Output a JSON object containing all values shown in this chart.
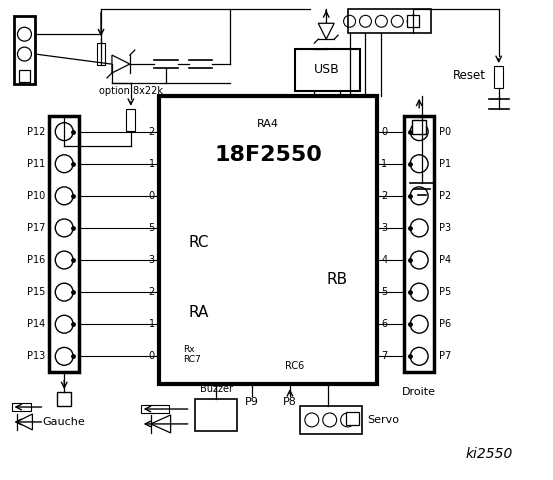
{
  "bg_color": "#ffffff",
  "line_color": "#000000",
  "chip_label": "18F2550",
  "chip_ra4": "RA4",
  "chip_rc": "RC",
  "chip_ra": "RA",
  "chip_rb": "RB",
  "chip_rc6": "RC6",
  "left_pins": [
    "P12",
    "P11",
    "P10",
    "P17",
    "P16",
    "P15",
    "P14",
    "P13"
  ],
  "left_rc_nums": [
    "2",
    "1",
    "0",
    "5",
    "3",
    "2",
    "1",
    "0"
  ],
  "right_pins": [
    "P0",
    "P1",
    "P2",
    "P3",
    "P4",
    "P5",
    "P6",
    "P7"
  ],
  "right_rb_nums": [
    "0",
    "1",
    "2",
    "3",
    "4",
    "5",
    "6",
    "7"
  ],
  "label_gauche": "Gauche",
  "label_droite": "Droite",
  "label_buzzer": "Buzzer",
  "label_servo": "Servo",
  "label_usb": "USB",
  "label_reset": "Reset",
  "label_option": "option 8x22k",
  "label_p8": "P8",
  "label_p9": "P9",
  "label_ki2550": "ki2550"
}
